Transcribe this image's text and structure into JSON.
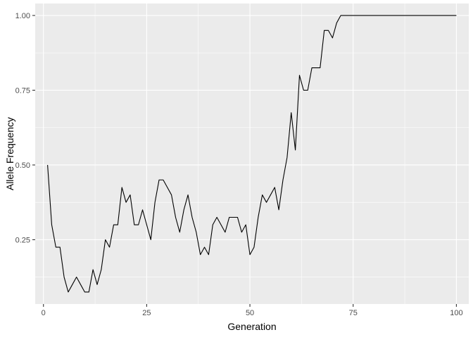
{
  "chart_data": {
    "type": "line",
    "title": "",
    "xlabel": "Generation",
    "ylabel": "Allele Frequency",
    "xlim": [
      -2,
      103
    ],
    "ylim": [
      0.035,
      1.04
    ],
    "x_ticks": [
      0,
      25,
      50,
      75,
      100
    ],
    "x_tick_labels": [
      "0",
      "25",
      "50",
      "75",
      "100"
    ],
    "y_ticks": [
      0.25,
      0.5,
      0.75,
      1.0
    ],
    "y_tick_labels": [
      "0.25",
      "0.50",
      "0.75",
      "1.00"
    ],
    "grid": true,
    "legend": "none",
    "colors": {
      "panel": "#ebebeb",
      "grid": "#ffffff",
      "line": "#000000",
      "tick_text": "#4d4d4d",
      "tick_mark": "#333333"
    },
    "series": [
      {
        "x": [
          1,
          2,
          3,
          4,
          5,
          6,
          7,
          8,
          9,
          10,
          11,
          12,
          13,
          14,
          15,
          16,
          17,
          18,
          19,
          20,
          21,
          22,
          23,
          24,
          25,
          26,
          27,
          28,
          29,
          30,
          31,
          32,
          33,
          34,
          35,
          36,
          37,
          38,
          39,
          40,
          41,
          42,
          43,
          44,
          45,
          46,
          47,
          48,
          49,
          50,
          51,
          52,
          53,
          54,
          55,
          56,
          57,
          58,
          59,
          60,
          61,
          62,
          63,
          64,
          65,
          66,
          67,
          68,
          69,
          70,
          71,
          72,
          73,
          74,
          75,
          76,
          77,
          78,
          79,
          80,
          81,
          82,
          83,
          84,
          85,
          86,
          87,
          88,
          89,
          90,
          91,
          92,
          93,
          94,
          95,
          96,
          97,
          98,
          99,
          100
        ],
        "values": [
          0.5,
          0.3,
          0.225,
          0.225,
          0.125,
          0.075,
          0.1,
          0.125,
          0.1,
          0.075,
          0.075,
          0.15,
          0.1,
          0.15,
          0.25,
          0.225,
          0.3,
          0.3,
          0.425,
          0.375,
          0.4,
          0.3,
          0.3,
          0.35,
          0.3,
          0.25,
          0.375,
          0.45,
          0.45,
          0.425,
          0.4,
          0.325,
          0.275,
          0.35,
          0.4,
          0.325,
          0.275,
          0.2,
          0.225,
          0.2,
          0.3,
          0.325,
          0.3,
          0.275,
          0.325,
          0.325,
          0.325,
          0.275,
          0.3,
          0.2,
          0.225,
          0.325,
          0.4,
          0.375,
          0.4,
          0.425,
          0.35,
          0.45,
          0.525,
          0.675,
          0.55,
          0.8,
          0.75,
          0.75,
          0.825,
          0.825,
          0.825,
          0.95,
          0.95,
          0.925,
          0.975,
          1.0,
          1.0,
          1.0,
          1.0,
          1.0,
          1.0,
          1.0,
          1.0,
          1.0,
          1.0,
          1.0,
          1.0,
          1.0,
          1.0,
          1.0,
          1.0,
          1.0,
          1.0,
          1.0,
          1.0,
          1.0,
          1.0,
          1.0,
          1.0,
          1.0,
          1.0,
          1.0,
          1.0,
          1.0
        ]
      }
    ]
  }
}
